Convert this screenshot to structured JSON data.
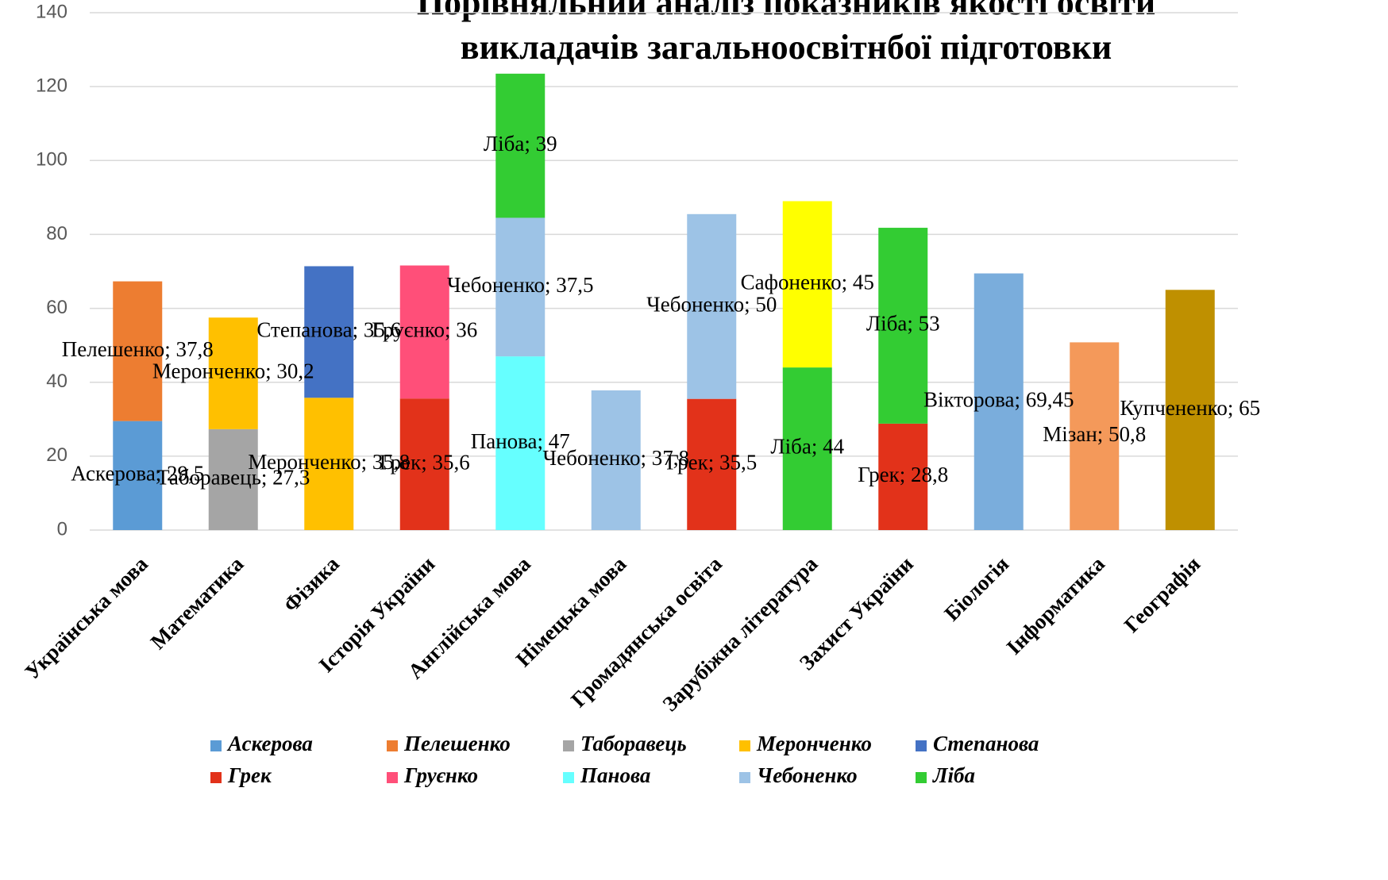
{
  "chart_data": {
    "type": "bar",
    "stacked": true,
    "title": "Порівняльний аналіз показників якості освіти викладачів загальноосвітнбої підготовки",
    "categories": [
      "Українська мова",
      "Математика",
      "Фізика",
      "Історія України",
      "Англійська мова",
      "Німецька мова",
      "Громадянська освіта",
      "Зарубіжна література",
      "Захист України",
      "Біологія",
      "Інформатика",
      "Географія"
    ],
    "ylim": [
      0,
      140
    ],
    "yticks": [
      0,
      20,
      40,
      60,
      80,
      100,
      120,
      140
    ],
    "grid": true,
    "legend": "bottom",
    "series": [
      {
        "name": "Аскерова",
        "color": "#5b9bd5",
        "values": [
          29.5,
          null,
          null,
          null,
          null,
          null,
          null,
          null,
          null,
          null,
          null,
          null
        ],
        "value_labels": [
          "Аскерова; 29,5",
          null,
          null,
          null,
          null,
          null,
          null,
          null,
          null,
          null,
          null,
          null
        ]
      },
      {
        "name": "Пелешенко",
        "color": "#ed7d31",
        "values": [
          37.8,
          null,
          null,
          null,
          null,
          null,
          null,
          null,
          null,
          null,
          null,
          null
        ],
        "value_labels": [
          "Пелешенко; 37,8",
          null,
          null,
          null,
          null,
          null,
          null,
          null,
          null,
          null,
          null,
          null
        ]
      },
      {
        "name": "Таборавець",
        "color": "#a5a5a5",
        "values": [
          null,
          27.3,
          null,
          null,
          null,
          null,
          null,
          null,
          null,
          null,
          null,
          null
        ],
        "value_labels": [
          null,
          "Таборавець; 27,3",
          null,
          null,
          null,
          null,
          null,
          null,
          null,
          null,
          null,
          null
        ]
      },
      {
        "name": "Меронченко",
        "color": "#ffc000",
        "values": [
          null,
          30.2,
          35.8,
          null,
          null,
          null,
          null,
          null,
          null,
          null,
          null,
          null
        ],
        "value_labels": [
          null,
          "Меронченко; 30,2",
          "Меронченко; 35,8",
          null,
          null,
          null,
          null,
          null,
          null,
          null,
          null,
          null
        ]
      },
      {
        "name": "Степанова",
        "color": "#4472c4",
        "values": [
          null,
          null,
          35.6,
          null,
          null,
          null,
          null,
          null,
          null,
          null,
          null,
          null
        ],
        "value_labels": [
          null,
          null,
          "Степанова; 35,6",
          null,
          null,
          null,
          null,
          null,
          null,
          null,
          null,
          null
        ]
      },
      {
        "name": "Грек",
        "color": "#e2321a",
        "values": [
          null,
          null,
          null,
          35.6,
          null,
          null,
          35.5,
          null,
          28.8,
          null,
          null,
          null
        ],
        "value_labels": [
          null,
          null,
          null,
          "Грек; 35,6",
          null,
          null,
          "Грек; 35,5",
          null,
          "Грек; 28,8",
          null,
          null,
          null
        ]
      },
      {
        "name": "Груєнко",
        "color": "#ff4f79",
        "values": [
          null,
          null,
          null,
          36,
          null,
          null,
          null,
          null,
          null,
          null,
          null,
          null
        ],
        "value_labels": [
          null,
          null,
          null,
          "Груєнко; 36",
          null,
          null,
          null,
          null,
          null,
          null,
          null,
          null
        ]
      },
      {
        "name": "Панова",
        "color": "#66ffff",
        "values": [
          null,
          null,
          null,
          null,
          47,
          null,
          null,
          null,
          null,
          null,
          null,
          null
        ],
        "value_labels": [
          null,
          null,
          null,
          null,
          "Панова; 47",
          null,
          null,
          null,
          null,
          null,
          null,
          null
        ]
      },
      {
        "name": "Чебоненко",
        "color": "#9dc3e6",
        "values": [
          null,
          null,
          null,
          null,
          37.5,
          37.8,
          50,
          null,
          null,
          null,
          null,
          null
        ],
        "value_labels": [
          null,
          null,
          null,
          null,
          "Чебоненко; 37,5",
          "Чебоненко; 37,8",
          "Чебоненко; 50",
          null,
          null,
          null,
          null,
          null
        ]
      },
      {
        "name": "Ліба",
        "color": "#33cc33",
        "values": [
          null,
          null,
          null,
          null,
          39,
          null,
          null,
          44,
          53,
          null,
          null,
          null
        ],
        "value_labels": [
          null,
          null,
          null,
          null,
          "Ліба; 39",
          null,
          null,
          "Ліба; 44",
          "Ліба; 53",
          null,
          null,
          null
        ]
      },
      {
        "color": "#ffff00",
        "values": [
          null,
          null,
          null,
          null,
          null,
          null,
          null,
          45,
          null,
          null,
          null,
          null
        ],
        "value_labels": [
          null,
          null,
          null,
          null,
          null,
          null,
          null,
          "Сафоненко; 45",
          null,
          null,
          null,
          null
        ]
      },
      {
        "color": "#7aaddc",
        "values": [
          null,
          null,
          null,
          null,
          null,
          null,
          null,
          null,
          null,
          69.45,
          null,
          null
        ],
        "value_labels": [
          null,
          null,
          null,
          null,
          null,
          null,
          null,
          null,
          null,
          "Вікторова; 69,45",
          null,
          null
        ]
      },
      {
        "color": "#f4995a",
        "values": [
          null,
          null,
          null,
          null,
          null,
          null,
          null,
          null,
          null,
          null,
          50.8,
          null
        ],
        "value_labels": [
          null,
          null,
          null,
          null,
          null,
          null,
          null,
          null,
          null,
          null,
          "Мізан; 50,8",
          null
        ]
      },
      {
        "color": "#bf9000",
        "values": [
          null,
          null,
          null,
          null,
          null,
          null,
          null,
          null,
          null,
          null,
          null,
          65
        ],
        "value_labels": [
          null,
          null,
          null,
          null,
          null,
          null,
          null,
          null,
          null,
          null,
          null,
          "Купчененко; 65"
        ]
      }
    ]
  }
}
